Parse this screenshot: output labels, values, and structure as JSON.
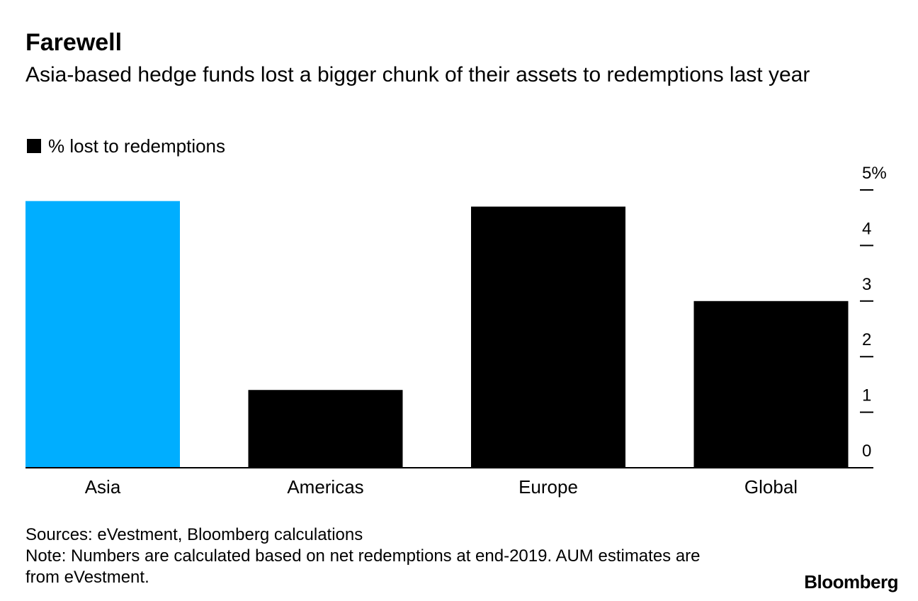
{
  "chart_data": {
    "type": "bar",
    "title": "Farewell",
    "subtitle": "Asia-based hedge funds lost a bigger chunk of their assets to redemptions last year",
    "legend": [
      "% lost to redemptions"
    ],
    "categories": [
      "Asia",
      "Americas",
      "Europe",
      "Global"
    ],
    "series": [
      {
        "name": "% lost to redemptions",
        "values": [
          4.8,
          1.4,
          4.7,
          3.0
        ]
      }
    ],
    "highlight_index": 0,
    "colors": {
      "highlight": "#00aeff",
      "bar": "#000000",
      "axis": "#000000"
    },
    "ylim": [
      0,
      5
    ],
    "yticks": [
      0,
      1,
      2,
      3,
      4,
      5
    ],
    "ytick_labels": [
      "0",
      "1",
      "2",
      "3",
      "4",
      "5%"
    ],
    "y_axis_side": "right",
    "grid": false,
    "legend_placement": "top-left"
  },
  "footer": {
    "sources": "Sources: eVestment, Bloomberg calculations",
    "note": "Note: Numbers are calculated based on net redemptions at end-2019. AUM estimates are from eVestment."
  },
  "brand": "Bloomberg"
}
